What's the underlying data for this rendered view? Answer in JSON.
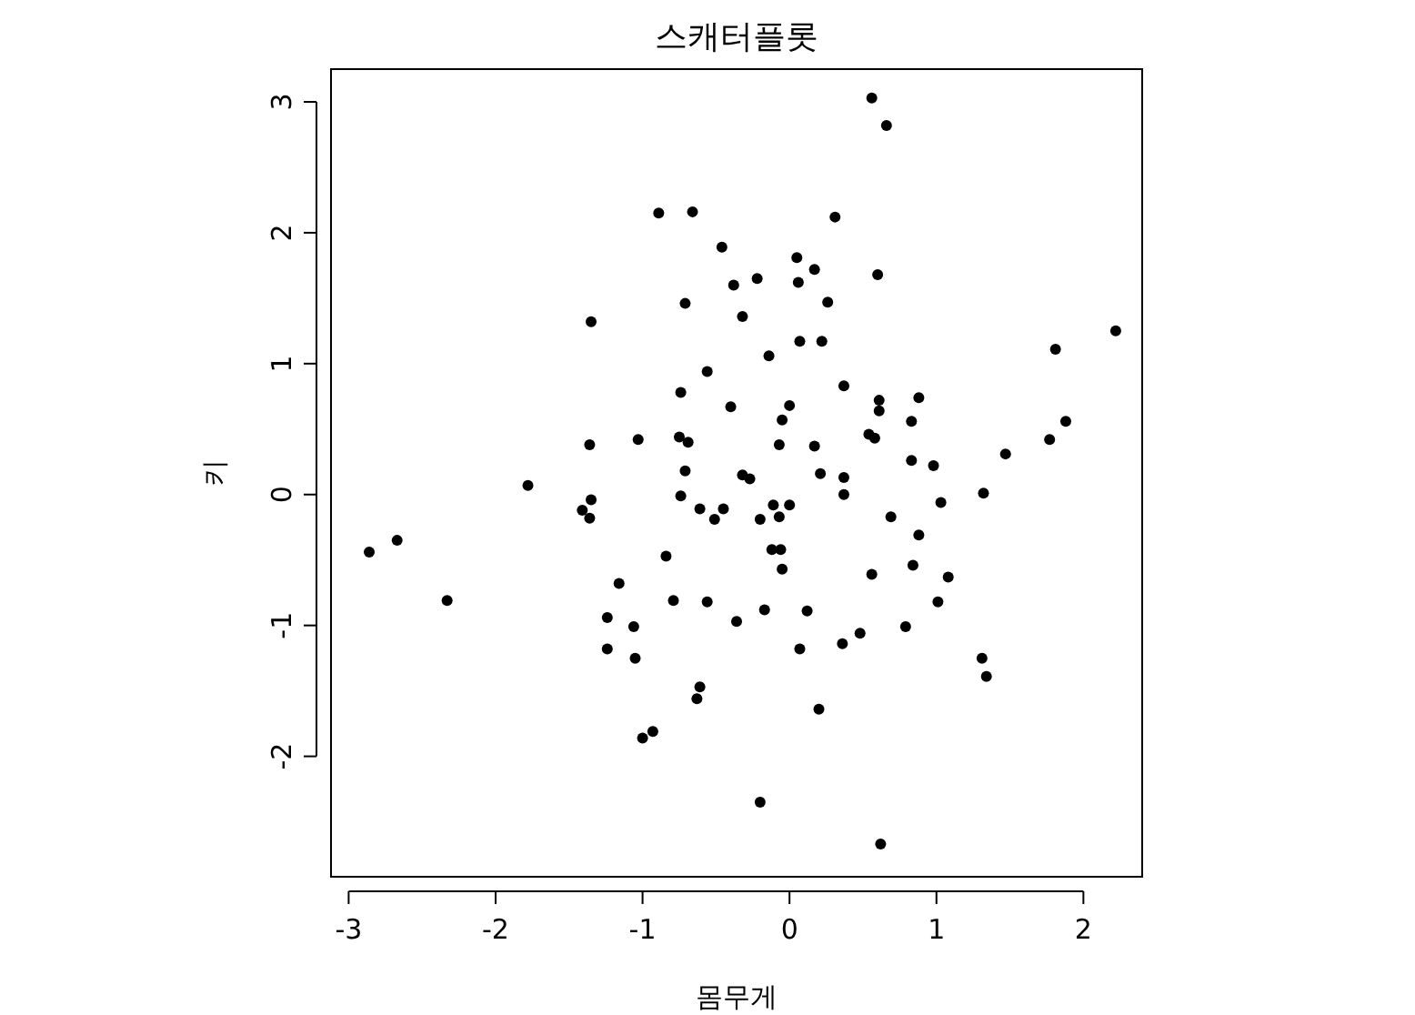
{
  "chart_data": {
    "type": "scatter",
    "title": "스캐터플롯",
    "xlabel": "몸무게",
    "ylabel": "키",
    "xlim": [
      -3.12,
      2.4
    ],
    "ylim": [
      -2.92,
      3.25
    ],
    "xticks": [
      -3,
      -2,
      -1,
      0,
      1,
      2
    ],
    "yticks": [
      -2,
      -1,
      0,
      1,
      2,
      3
    ],
    "marker": "circle",
    "series": [
      {
        "color": "#000000",
        "x": [
          0.56,
          0.66,
          -0.89,
          -0.66,
          0.31,
          -0.46,
          0.05,
          0.17,
          -0.22,
          0.6,
          -0.38,
          0.06,
          -0.71,
          0.26,
          -0.32,
          -1.35,
          0.07,
          0.22,
          -0.14,
          -0.56,
          0.37,
          -0.74,
          0.61,
          0.88,
          0.0,
          -0.4,
          0.61,
          -0.05,
          0.83,
          2.22,
          1.81,
          1.88,
          1.47,
          1.77,
          -0.75,
          0.54,
          -1.03,
          -0.69,
          -1.36,
          -0.07,
          0.17,
          0.58,
          0.83,
          0.98,
          -0.32,
          -0.27,
          0.21,
          0.37,
          -0.71,
          -1.78,
          1.32,
          0.37,
          -0.74,
          1.03,
          -1.35,
          -0.61,
          -0.45,
          0.0,
          -0.11,
          -1.41,
          -1.36,
          -0.07,
          -0.51,
          0.69,
          -0.2,
          0.88,
          -2.86,
          -2.67,
          -0.12,
          -0.06,
          -0.84,
          0.84,
          -0.05,
          0.56,
          1.08,
          -1.16,
          -2.33,
          -0.79,
          -0.56,
          1.01,
          -0.17,
          0.12,
          -1.24,
          -0.36,
          -1.06,
          0.79,
          0.48,
          0.36,
          -1.24,
          0.07,
          -1.05,
          1.31,
          1.34,
          -0.61,
          -0.63,
          0.2,
          -0.93,
          -1.0,
          -0.2,
          0.62
        ],
        "values": [
          3.03,
          2.82,
          2.15,
          2.16,
          2.12,
          1.89,
          1.81,
          1.72,
          1.65,
          1.68,
          1.6,
          1.62,
          1.46,
          1.47,
          1.36,
          1.32,
          1.17,
          1.17,
          1.06,
          0.94,
          0.83,
          0.78,
          0.72,
          0.74,
          0.68,
          0.67,
          0.64,
          0.57,
          0.56,
          1.25,
          1.11,
          0.56,
          0.31,
          0.42,
          0.44,
          0.46,
          0.42,
          0.4,
          0.38,
          0.38,
          0.37,
          0.43,
          0.26,
          0.22,
          0.15,
          0.12,
          0.16,
          0.13,
          0.18,
          0.07,
          0.01,
          0.0,
          -0.01,
          -0.06,
          -0.04,
          -0.11,
          -0.11,
          -0.08,
          -0.08,
          -0.12,
          -0.18,
          -0.17,
          -0.19,
          -0.17,
          -0.19,
          -0.31,
          -0.44,
          -0.35,
          -0.42,
          -0.42,
          -0.47,
          -0.54,
          -0.57,
          -0.61,
          -0.63,
          -0.68,
          -0.81,
          -0.81,
          -0.82,
          -0.82,
          -0.88,
          -0.89,
          -0.94,
          -0.97,
          -1.01,
          -1.01,
          -1.06,
          -1.14,
          -1.18,
          -1.18,
          -1.25,
          -1.25,
          -1.39,
          -1.47,
          -1.56,
          -1.64,
          -1.81,
          -1.86,
          -2.35,
          -2.67
        ]
      }
    ]
  }
}
